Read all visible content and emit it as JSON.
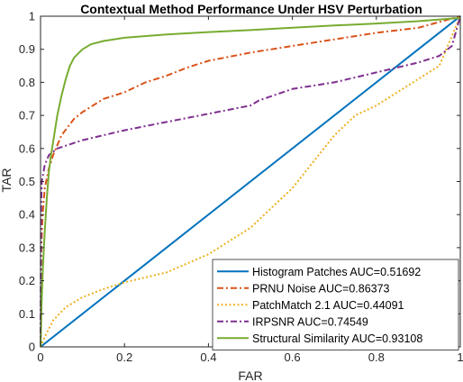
{
  "chart_data": {
    "type": "line",
    "title": "Contextual Method Performance Under HSV Perturbation",
    "xlabel": "FAR",
    "ylabel": "TAR",
    "xlim": [
      0,
      1
    ],
    "ylim": [
      0,
      1
    ],
    "x_ticks": [
      "0",
      "0.2",
      "0.4",
      "0.6",
      "0.8",
      "1"
    ],
    "y_ticks": [
      "0",
      "0.1",
      "0.2",
      "0.3",
      "0.4",
      "0.5",
      "0.6",
      "0.7",
      "0.8",
      "0.9",
      "1"
    ],
    "grid": false,
    "legend_position": "bottom-right",
    "series": [
      {
        "name": "Histogram Patches AUC=0.51692",
        "color": "#0072BD",
        "dash": "solid",
        "points": [
          [
            0,
            0
          ],
          [
            1,
            1
          ]
        ]
      },
      {
        "name": "PRNU Noise AUC=0.86373",
        "color": "#D95319",
        "dash": "dashdot",
        "points": [
          [
            0,
            0
          ],
          [
            0.002,
            0.3
          ],
          [
            0.005,
            0.4
          ],
          [
            0.01,
            0.48
          ],
          [
            0.02,
            0.54
          ],
          [
            0.03,
            0.58
          ],
          [
            0.05,
            0.64
          ],
          [
            0.08,
            0.69
          ],
          [
            0.1,
            0.71
          ],
          [
            0.15,
            0.75
          ],
          [
            0.2,
            0.77
          ],
          [
            0.25,
            0.8
          ],
          [
            0.3,
            0.82
          ],
          [
            0.35,
            0.845
          ],
          [
            0.4,
            0.865
          ],
          [
            0.5,
            0.89
          ],
          [
            0.6,
            0.91
          ],
          [
            0.7,
            0.93
          ],
          [
            0.8,
            0.95
          ],
          [
            0.9,
            0.965
          ],
          [
            1,
            1
          ]
        ]
      },
      {
        "name": "PatchMatch 2.1 AUC=0.44091",
        "color": "#EDB120",
        "dash": "dotted",
        "points": [
          [
            0,
            0
          ],
          [
            0.01,
            0.03
          ],
          [
            0.03,
            0.08
          ],
          [
            0.06,
            0.12
          ],
          [
            0.1,
            0.15
          ],
          [
            0.15,
            0.175
          ],
          [
            0.2,
            0.195
          ],
          [
            0.3,
            0.225
          ],
          [
            0.4,
            0.28
          ],
          [
            0.5,
            0.36
          ],
          [
            0.6,
            0.48
          ],
          [
            0.65,
            0.56
          ],
          [
            0.7,
            0.64
          ],
          [
            0.75,
            0.7
          ],
          [
            0.8,
            0.73
          ],
          [
            0.85,
            0.77
          ],
          [
            0.9,
            0.81
          ],
          [
            0.95,
            0.85
          ],
          [
            1,
            1
          ]
        ]
      },
      {
        "name": "IRPSNR AUC=0.74549",
        "color": "#7E2F8E",
        "dash": "dashdot",
        "points": [
          [
            0,
            0
          ],
          [
            0.001,
            0.4
          ],
          [
            0.003,
            0.5
          ],
          [
            0.01,
            0.55
          ],
          [
            0.02,
            0.58
          ],
          [
            0.04,
            0.6
          ],
          [
            0.1,
            0.625
          ],
          [
            0.2,
            0.655
          ],
          [
            0.3,
            0.68
          ],
          [
            0.4,
            0.705
          ],
          [
            0.5,
            0.73
          ],
          [
            0.52,
            0.745
          ],
          [
            0.6,
            0.78
          ],
          [
            0.7,
            0.8
          ],
          [
            0.8,
            0.83
          ],
          [
            0.9,
            0.86
          ],
          [
            0.95,
            0.88
          ],
          [
            0.98,
            0.91
          ],
          [
            1,
            1
          ]
        ]
      },
      {
        "name": "Structural Similarity AUC=0.93108",
        "color": "#77AC30",
        "dash": "solid",
        "points": [
          [
            0,
            0
          ],
          [
            0.003,
            0.15
          ],
          [
            0.006,
            0.25
          ],
          [
            0.01,
            0.35
          ],
          [
            0.015,
            0.45
          ],
          [
            0.02,
            0.53
          ],
          [
            0.025,
            0.58
          ],
          [
            0.03,
            0.62
          ],
          [
            0.04,
            0.7
          ],
          [
            0.05,
            0.76
          ],
          [
            0.06,
            0.81
          ],
          [
            0.07,
            0.85
          ],
          [
            0.08,
            0.875
          ],
          [
            0.1,
            0.9
          ],
          [
            0.12,
            0.915
          ],
          [
            0.15,
            0.925
          ],
          [
            0.2,
            0.935
          ],
          [
            0.3,
            0.945
          ],
          [
            0.4,
            0.952
          ],
          [
            0.5,
            0.958
          ],
          [
            0.6,
            0.965
          ],
          [
            0.7,
            0.972
          ],
          [
            0.8,
            0.978
          ],
          [
            0.9,
            0.985
          ],
          [
            1,
            0.995
          ]
        ]
      }
    ]
  }
}
